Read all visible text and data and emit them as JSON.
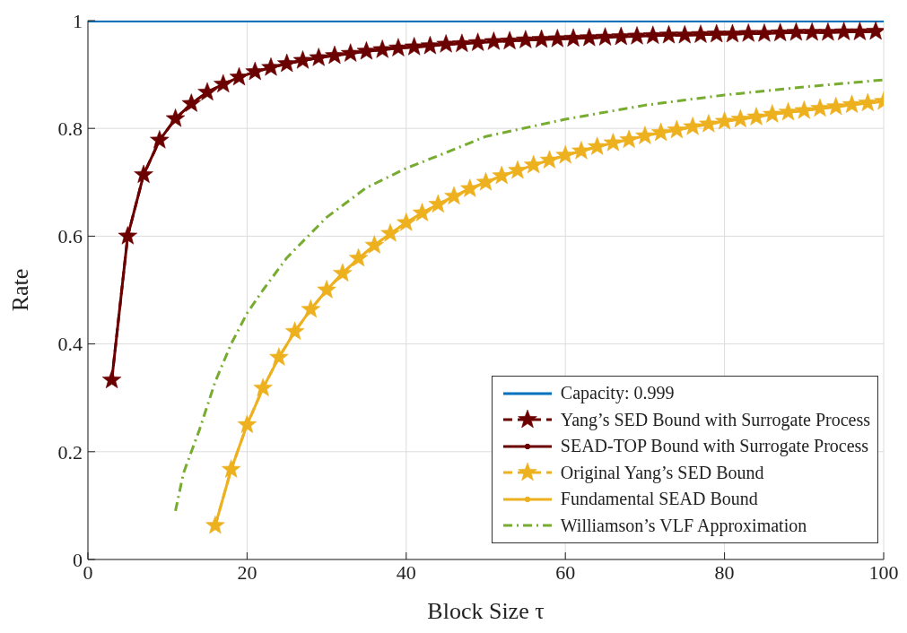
{
  "chart_data": {
    "type": "line",
    "xlabel": "Block Size τ",
    "ylabel": "Rate",
    "xlim": [
      0,
      100
    ],
    "xticks": [
      0,
      20,
      40,
      60,
      80,
      100
    ],
    "ylim": [
      0,
      1
    ],
    "yticks": [
      0,
      0.2,
      0.4,
      0.6,
      0.8,
      1
    ],
    "grid": true,
    "legend": "bottom right",
    "series": [
      {
        "name": "Capacity: 0.999",
        "color": "#0072bd",
        "marker": "none",
        "line_style": "solid",
        "x": [
          0,
          100
        ],
        "values": [
          0.999,
          0.999
        ]
      },
      {
        "name": "Yang’s SED Bound with Surrogate Process",
        "color": "#6b0000",
        "marker": "star",
        "line_style": "dashed",
        "x": [
          3,
          5,
          7,
          9,
          11,
          13,
          15,
          17,
          19,
          21,
          23,
          25,
          27,
          29,
          31,
          33,
          35,
          37,
          39,
          41,
          43,
          45,
          47,
          49,
          51,
          53,
          55,
          57,
          59,
          61,
          63,
          65,
          67,
          69,
          71,
          73,
          75,
          77,
          79,
          81,
          83,
          85,
          87,
          89,
          91,
          93,
          95,
          97,
          99
        ],
        "values": [
          0.333,
          0.6,
          0.714,
          0.778,
          0.818,
          0.846,
          0.867,
          0.882,
          0.895,
          0.905,
          0.913,
          0.92,
          0.926,
          0.931,
          0.935,
          0.939,
          0.943,
          0.946,
          0.949,
          0.951,
          0.953,
          0.956,
          0.957,
          0.959,
          0.961,
          0.962,
          0.964,
          0.965,
          0.966,
          0.967,
          0.968,
          0.969,
          0.97,
          0.971,
          0.972,
          0.973,
          0.973,
          0.974,
          0.975,
          0.975,
          0.976,
          0.976,
          0.977,
          0.978,
          0.978,
          0.978,
          0.979,
          0.979,
          0.98
        ]
      },
      {
        "name": "SEAD-TOP Bound with Surrogate Process",
        "color": "#6b0000",
        "marker": "circle",
        "line_style": "solid",
        "x": [
          3,
          5,
          7,
          9,
          11,
          13,
          15,
          17,
          19,
          21,
          23,
          25,
          27,
          29,
          31,
          33,
          35,
          37,
          39,
          41,
          43,
          45,
          47,
          49,
          51,
          53,
          55,
          57,
          59,
          61,
          63,
          65,
          67,
          69,
          71,
          73,
          75,
          77,
          79,
          81,
          83,
          85,
          87,
          89,
          91,
          93,
          95,
          97,
          99
        ],
        "values": [
          0.333,
          0.6,
          0.714,
          0.778,
          0.818,
          0.846,
          0.867,
          0.882,
          0.895,
          0.905,
          0.913,
          0.92,
          0.926,
          0.931,
          0.935,
          0.939,
          0.943,
          0.946,
          0.949,
          0.951,
          0.953,
          0.956,
          0.957,
          0.959,
          0.961,
          0.962,
          0.964,
          0.965,
          0.966,
          0.967,
          0.968,
          0.969,
          0.97,
          0.971,
          0.972,
          0.973,
          0.973,
          0.974,
          0.975,
          0.975,
          0.976,
          0.976,
          0.977,
          0.978,
          0.978,
          0.978,
          0.979,
          0.979,
          0.98
        ]
      },
      {
        "name": "Original Yang’s SED Bound",
        "color": "#edb120",
        "marker": "star",
        "line_style": "dashed",
        "x": [
          16,
          18,
          20,
          22,
          24,
          26,
          28,
          30,
          32,
          34,
          36,
          38,
          40,
          42,
          44,
          46,
          48,
          50,
          52,
          54,
          56,
          58,
          60,
          62,
          64,
          66,
          68,
          70,
          72,
          74,
          76,
          78,
          80,
          82,
          84,
          86,
          88,
          90,
          92,
          94,
          96,
          98,
          100
        ],
        "values": [
          0.063,
          0.167,
          0.25,
          0.318,
          0.375,
          0.423,
          0.464,
          0.5,
          0.531,
          0.559,
          0.583,
          0.605,
          0.625,
          0.643,
          0.659,
          0.674,
          0.688,
          0.7,
          0.712,
          0.722,
          0.732,
          0.741,
          0.75,
          0.758,
          0.766,
          0.773,
          0.779,
          0.786,
          0.792,
          0.797,
          0.803,
          0.808,
          0.813,
          0.817,
          0.821,
          0.826,
          0.83,
          0.833,
          0.837,
          0.84,
          0.844,
          0.847,
          0.85
        ]
      },
      {
        "name": "Fundamental SEAD Bound",
        "color": "#edb120",
        "marker": "circle",
        "line_style": "solid",
        "x": [
          16,
          18,
          20,
          22,
          24,
          26,
          28,
          30,
          32,
          34,
          36,
          38,
          40,
          42,
          44,
          46,
          48,
          50,
          52,
          54,
          56,
          58,
          60,
          62,
          64,
          66,
          68,
          70,
          72,
          74,
          76,
          78,
          80,
          82,
          84,
          86,
          88,
          90,
          92,
          94,
          96,
          98,
          100
        ],
        "values": [
          0.063,
          0.167,
          0.25,
          0.318,
          0.375,
          0.423,
          0.464,
          0.5,
          0.531,
          0.559,
          0.583,
          0.605,
          0.625,
          0.643,
          0.659,
          0.674,
          0.688,
          0.7,
          0.712,
          0.722,
          0.732,
          0.741,
          0.75,
          0.758,
          0.766,
          0.773,
          0.779,
          0.786,
          0.792,
          0.797,
          0.803,
          0.808,
          0.813,
          0.817,
          0.821,
          0.826,
          0.83,
          0.833,
          0.837,
          0.84,
          0.844,
          0.847,
          0.85
        ]
      },
      {
        "name": "Williamson’s VLF Approximation",
        "color": "#77ac30",
        "marker": "none",
        "line_style": "dashdot",
        "x": [
          11,
          12,
          14,
          16,
          18,
          20,
          22,
          25,
          30,
          35,
          40,
          45,
          50,
          60,
          70,
          80,
          90,
          100
        ],
        "values": [
          0.09,
          0.16,
          0.24,
          0.33,
          0.4,
          0.457,
          0.5,
          0.56,
          0.635,
          0.69,
          0.726,
          0.755,
          0.785,
          0.817,
          0.843,
          0.862,
          0.877,
          0.89
        ]
      }
    ]
  }
}
